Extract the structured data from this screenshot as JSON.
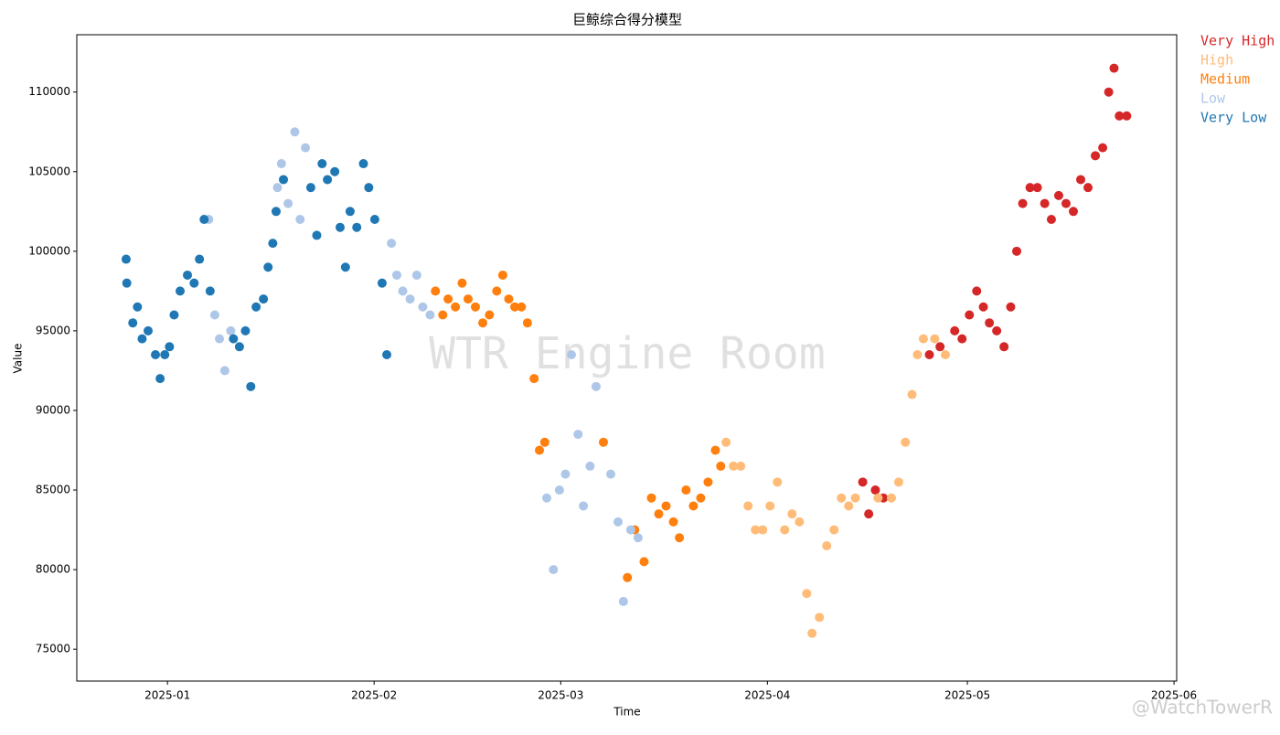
{
  "chart_data": {
    "type": "scatter",
    "title": "巨鲸综合得分模型",
    "x_label": "Time",
    "y_label": "Value",
    "watermark": "WTR Engine Room",
    "credit": "@WatchTowerR",
    "legend": "right-outside",
    "xlim": [
      -13.6,
      151.4
    ],
    "xticks": [
      {
        "value": 0,
        "label": "2025-01"
      },
      {
        "value": 31,
        "label": "2025-02"
      },
      {
        "value": 59,
        "label": "2025-03"
      },
      {
        "value": 90,
        "label": "2025-04"
      },
      {
        "value": 120,
        "label": "2025-05"
      },
      {
        "value": 151,
        "label": "2025-06"
      }
    ],
    "ylim": [
      73000,
      113600
    ],
    "yticks": [
      75000,
      80000,
      85000,
      90000,
      95000,
      100000,
      105000,
      110000
    ],
    "series": [
      {
        "name": "Very High",
        "color": "#d62728",
        "x": [
          104.3,
          105.2,
          106.2,
          107.4,
          114.3,
          115.9,
          118.1,
          119.2,
          120.3,
          121.4,
          122.4,
          123.3,
          124.4,
          125.5,
          126.5,
          127.4,
          128.3,
          129.4,
          130.5,
          131.6,
          132.6,
          133.7,
          134.8,
          135.9,
          137,
          138.1,
          139.2,
          140.3,
          141.2,
          142,
          142.8,
          143.9
        ],
        "values": [
          85500,
          83500,
          85000,
          84500,
          93500,
          94000,
          95000,
          94500,
          96000,
          97500,
          96500,
          95500,
          95000,
          94000,
          96500,
          100000,
          103000,
          104000,
          104000,
          103000,
          102000,
          103500,
          103000,
          102500,
          104500,
          104000,
          106000,
          106500,
          110000,
          111500,
          108500,
          108500
        ]
      },
      {
        "name": "High",
        "color": "#ffbb78",
        "x": [
          83.8,
          84.9,
          86,
          87.1,
          88.2,
          89.3,
          90.4,
          91.5,
          92.6,
          93.7,
          94.8,
          95.9,
          96.7,
          97.8,
          98.9,
          100,
          101.1,
          102.2,
          103.2,
          106.6,
          108.6,
          109.7,
          110.7,
          111.7,
          112.5,
          113.4,
          115.1,
          116.7
        ],
        "values": [
          88000,
          86500,
          86500,
          84000,
          82500,
          82500,
          84000,
          85500,
          82500,
          83500,
          83000,
          78500,
          76000,
          77000,
          81500,
          82500,
          84500,
          84000,
          84500,
          84500,
          84500,
          85500,
          88000,
          91000,
          93500,
          94500,
          94500,
          93500
        ]
      },
      {
        "name": "Medium",
        "color": "#ff7f0e",
        "x": [
          40.2,
          41.3,
          42.1,
          43.2,
          44.2,
          45.1,
          46.2,
          47.3,
          48.3,
          49.4,
          50.3,
          51.2,
          52.1,
          53.1,
          54,
          55,
          55.8,
          56.6,
          65.4,
          69,
          70.1,
          71.5,
          72.6,
          73.7,
          74.8,
          75.9,
          76.8,
          77.8,
          78.9,
          80,
          81.1,
          82.2,
          83
        ],
        "values": [
          97500,
          96000,
          97000,
          96500,
          98000,
          97000,
          96500,
          95500,
          96000,
          97500,
          98500,
          97000,
          96500,
          96500,
          95500,
          92000,
          87500,
          88000,
          88000,
          79500,
          82500,
          80500,
          84500,
          83500,
          84000,
          83000,
          82000,
          85000,
          84000,
          84500,
          85500,
          87500,
          86500
        ]
      },
      {
        "name": "Low",
        "color": "#aec7e8",
        "x": [
          6.2,
          7.1,
          7.8,
          8.6,
          9.5,
          16.5,
          17.1,
          18.1,
          19.1,
          19.9,
          20.7,
          33.6,
          34.4,
          35.3,
          36.4,
          37.4,
          38.3,
          39.4,
          56.9,
          57.9,
          58.8,
          59.7,
          60.6,
          61.6,
          62.4,
          63.4,
          64.3,
          66.5,
          67.6,
          68.4,
          69.5,
          70.6
        ],
        "values": [
          102000,
          96000,
          94500,
          92500,
          95000,
          104000,
          105500,
          103000,
          107500,
          102000,
          106500,
          100500,
          98500,
          97500,
          97000,
          98500,
          96500,
          96000,
          84500,
          80000,
          85000,
          86000,
          93500,
          88500,
          84000,
          86500,
          91500,
          86000,
          83000,
          78000,
          82500,
          82000
        ]
      },
      {
        "name": "Very Low",
        "color": "#1f77b4",
        "x": [
          -6.2,
          -6.1,
          -5.2,
          -4.5,
          -3.8,
          -2.9,
          -1.8,
          -1.1,
          -0.4,
          0.3,
          1,
          1.9,
          3,
          4,
          4.8,
          5.5,
          6.4,
          9.9,
          10.8,
          11.7,
          12.5,
          13.3,
          14.4,
          15.1,
          15.8,
          16.3,
          17.4,
          21.5,
          22.4,
          23.2,
          24,
          25.1,
          25.9,
          26.7,
          27.4,
          28.4,
          29.4,
          30.2,
          31.1,
          32.2,
          32.9
        ],
        "values": [
          99500,
          98000,
          95500,
          96500,
          94500,
          95000,
          93500,
          92000,
          93500,
          94000,
          96000,
          97500,
          98500,
          98000,
          99500,
          102000,
          97500,
          94500,
          94000,
          95000,
          91500,
          96500,
          97000,
          99000,
          100500,
          102500,
          104500,
          104000,
          101000,
          105500,
          104500,
          105000,
          101500,
          99000,
          102500,
          101500,
          105500,
          104000,
          102000,
          98000,
          93500
        ]
      }
    ]
  }
}
